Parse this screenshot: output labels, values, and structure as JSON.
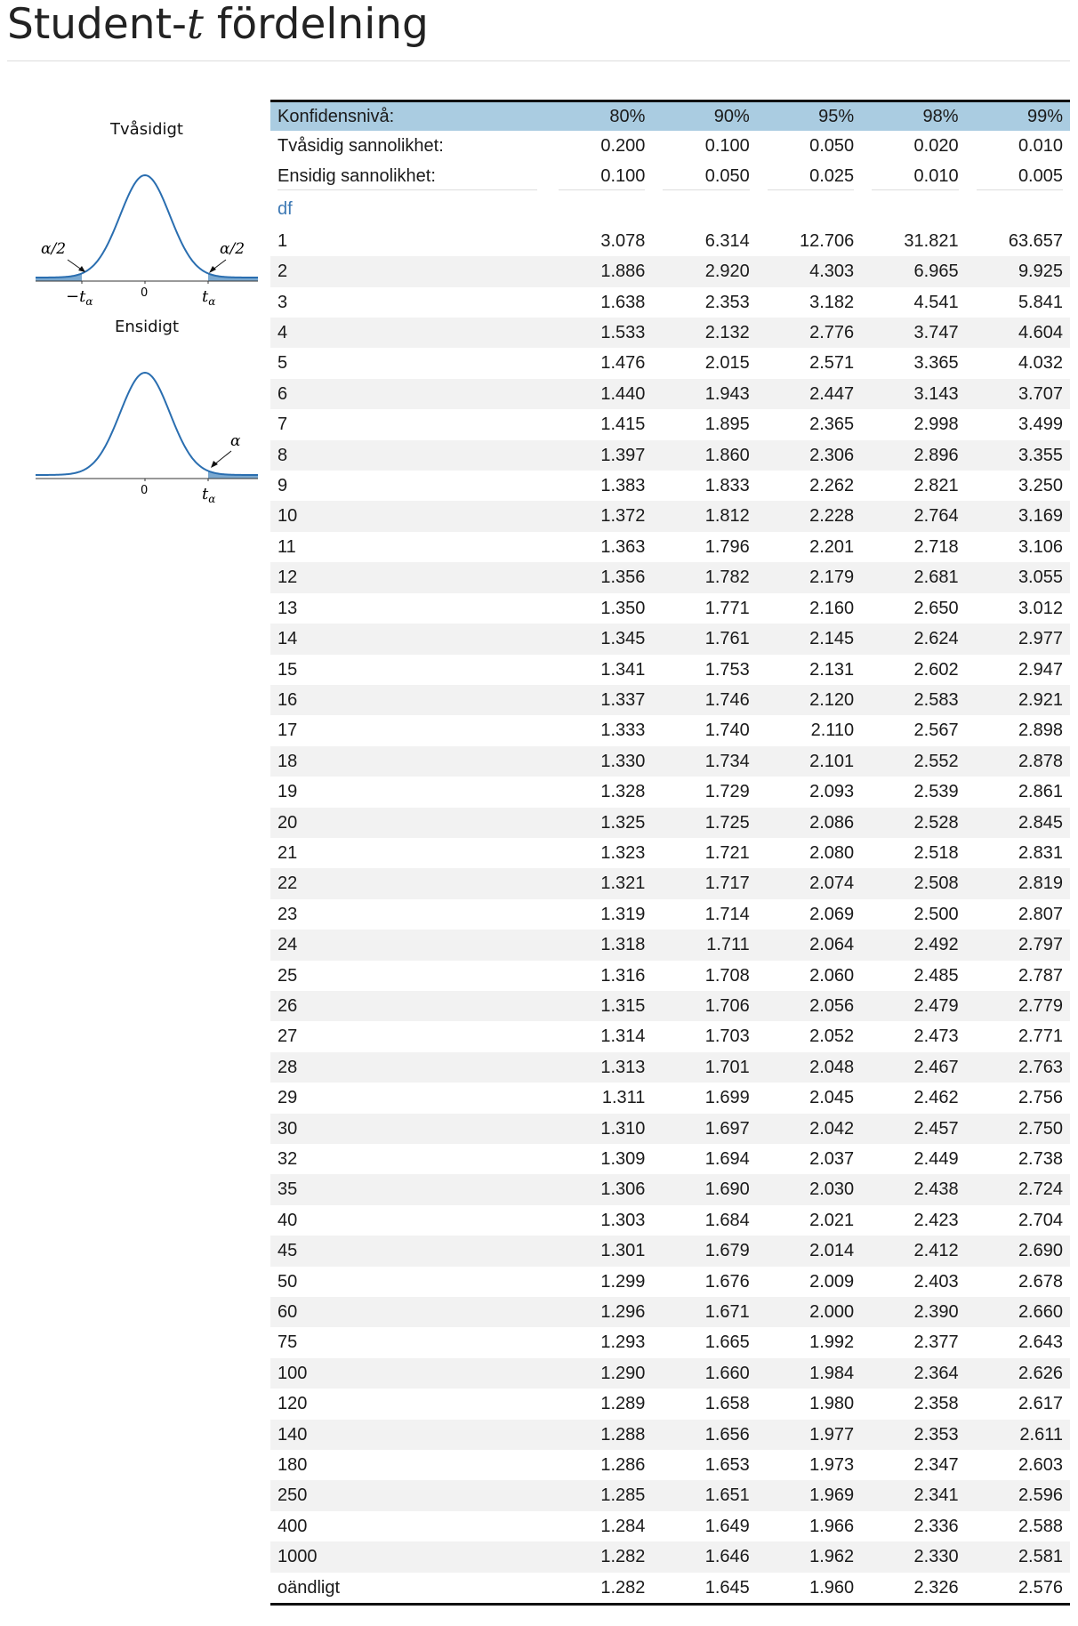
{
  "title": {
    "prefix": "Student-",
    "t": "t",
    "suffix": " fördelning"
  },
  "figures": {
    "two_sided": {
      "label": "Tvåsidigt",
      "alpha_left": "α/2",
      "alpha_right": "α/2",
      "neg_t": "−t",
      "t": "t",
      "sub": "α",
      "zero": "0"
    },
    "one_sided": {
      "label": "Ensidigt",
      "alpha": "α",
      "t": "t",
      "sub": "α",
      "zero": "0"
    }
  },
  "table": {
    "header": [
      "Konfidensnivå:",
      "80%",
      "90%",
      "95%",
      "98%",
      "99%"
    ],
    "two_sided": [
      "Tvåsidig sannolikhet:",
      "0.200",
      "0.100",
      "0.050",
      "0.020",
      "0.010"
    ],
    "one_sided": [
      "Ensidig sannolikhet:",
      "0.100",
      "0.050",
      "0.025",
      "0.010",
      "0.005"
    ],
    "df_label": "df",
    "rows": [
      [
        "1",
        "3.078",
        "6.314",
        "12.706",
        "31.821",
        "63.657"
      ],
      [
        "2",
        "1.886",
        "2.920",
        "4.303",
        "6.965",
        "9.925"
      ],
      [
        "3",
        "1.638",
        "2.353",
        "3.182",
        "4.541",
        "5.841"
      ],
      [
        "4",
        "1.533",
        "2.132",
        "2.776",
        "3.747",
        "4.604"
      ],
      [
        "5",
        "1.476",
        "2.015",
        "2.571",
        "3.365",
        "4.032"
      ],
      [
        "6",
        "1.440",
        "1.943",
        "2.447",
        "3.143",
        "3.707"
      ],
      [
        "7",
        "1.415",
        "1.895",
        "2.365",
        "2.998",
        "3.499"
      ],
      [
        "8",
        "1.397",
        "1.860",
        "2.306",
        "2.896",
        "3.355"
      ],
      [
        "9",
        "1.383",
        "1.833",
        "2.262",
        "2.821",
        "3.250"
      ],
      [
        "10",
        "1.372",
        "1.812",
        "2.228",
        "2.764",
        "3.169"
      ],
      [
        "11",
        "1.363",
        "1.796",
        "2.201",
        "2.718",
        "3.106"
      ],
      [
        "12",
        "1.356",
        "1.782",
        "2.179",
        "2.681",
        "3.055"
      ],
      [
        "13",
        "1.350",
        "1.771",
        "2.160",
        "2.650",
        "3.012"
      ],
      [
        "14",
        "1.345",
        "1.761",
        "2.145",
        "2.624",
        "2.977"
      ],
      [
        "15",
        "1.341",
        "1.753",
        "2.131",
        "2.602",
        "2.947"
      ],
      [
        "16",
        "1.337",
        "1.746",
        "2.120",
        "2.583",
        "2.921"
      ],
      [
        "17",
        "1.333",
        "1.740",
        "2.110",
        "2.567",
        "2.898"
      ],
      [
        "18",
        "1.330",
        "1.734",
        "2.101",
        "2.552",
        "2.878"
      ],
      [
        "19",
        "1.328",
        "1.729",
        "2.093",
        "2.539",
        "2.861"
      ],
      [
        "20",
        "1.325",
        "1.725",
        "2.086",
        "2.528",
        "2.845"
      ],
      [
        "21",
        "1.323",
        "1.721",
        "2.080",
        "2.518",
        "2.831"
      ],
      [
        "22",
        "1.321",
        "1.717",
        "2.074",
        "2.508",
        "2.819"
      ],
      [
        "23",
        "1.319",
        "1.714",
        "2.069",
        "2.500",
        "2.807"
      ],
      [
        "24",
        "1.318",
        "1.711",
        "2.064",
        "2.492",
        "2.797"
      ],
      [
        "25",
        "1.316",
        "1.708",
        "2.060",
        "2.485",
        "2.787"
      ],
      [
        "26",
        "1.315",
        "1.706",
        "2.056",
        "2.479",
        "2.779"
      ],
      [
        "27",
        "1.314",
        "1.703",
        "2.052",
        "2.473",
        "2.771"
      ],
      [
        "28",
        "1.313",
        "1.701",
        "2.048",
        "2.467",
        "2.763"
      ],
      [
        "29",
        "1.311",
        "1.699",
        "2.045",
        "2.462",
        "2.756"
      ],
      [
        "30",
        "1.310",
        "1.697",
        "2.042",
        "2.457",
        "2.750"
      ],
      [
        "32",
        "1.309",
        "1.694",
        "2.037",
        "2.449",
        "2.738"
      ],
      [
        "35",
        "1.306",
        "1.690",
        "2.030",
        "2.438",
        "2.724"
      ],
      [
        "40",
        "1.303",
        "1.684",
        "2.021",
        "2.423",
        "2.704"
      ],
      [
        "45",
        "1.301",
        "1.679",
        "2.014",
        "2.412",
        "2.690"
      ],
      [
        "50",
        "1.299",
        "1.676",
        "2.009",
        "2.403",
        "2.678"
      ],
      [
        "60",
        "1.296",
        "1.671",
        "2.000",
        "2.390",
        "2.660"
      ],
      [
        "75",
        "1.293",
        "1.665",
        "1.992",
        "2.377",
        "2.643"
      ],
      [
        "100",
        "1.290",
        "1.660",
        "1.984",
        "2.364",
        "2.626"
      ],
      [
        "120",
        "1.289",
        "1.658",
        "1.980",
        "2.358",
        "2.617"
      ],
      [
        "140",
        "1.288",
        "1.656",
        "1.977",
        "2.353",
        "2.611"
      ],
      [
        "180",
        "1.286",
        "1.653",
        "1.973",
        "2.347",
        "2.603"
      ],
      [
        "250",
        "1.285",
        "1.651",
        "1.969",
        "2.341",
        "2.596"
      ],
      [
        "400",
        "1.284",
        "1.649",
        "1.966",
        "2.336",
        "2.588"
      ],
      [
        "1000",
        "1.282",
        "1.646",
        "1.962",
        "2.330",
        "2.581"
      ],
      [
        "oändligt",
        "1.282",
        "1.645",
        "1.960",
        "2.326",
        "2.576"
      ]
    ]
  },
  "colors": {
    "header_bg": "#aacce1",
    "curve": "#2a6eb0",
    "tail_fill": "#7ba9d0",
    "df_label": "#3c78b4",
    "stripe": "#f2f2f2"
  }
}
